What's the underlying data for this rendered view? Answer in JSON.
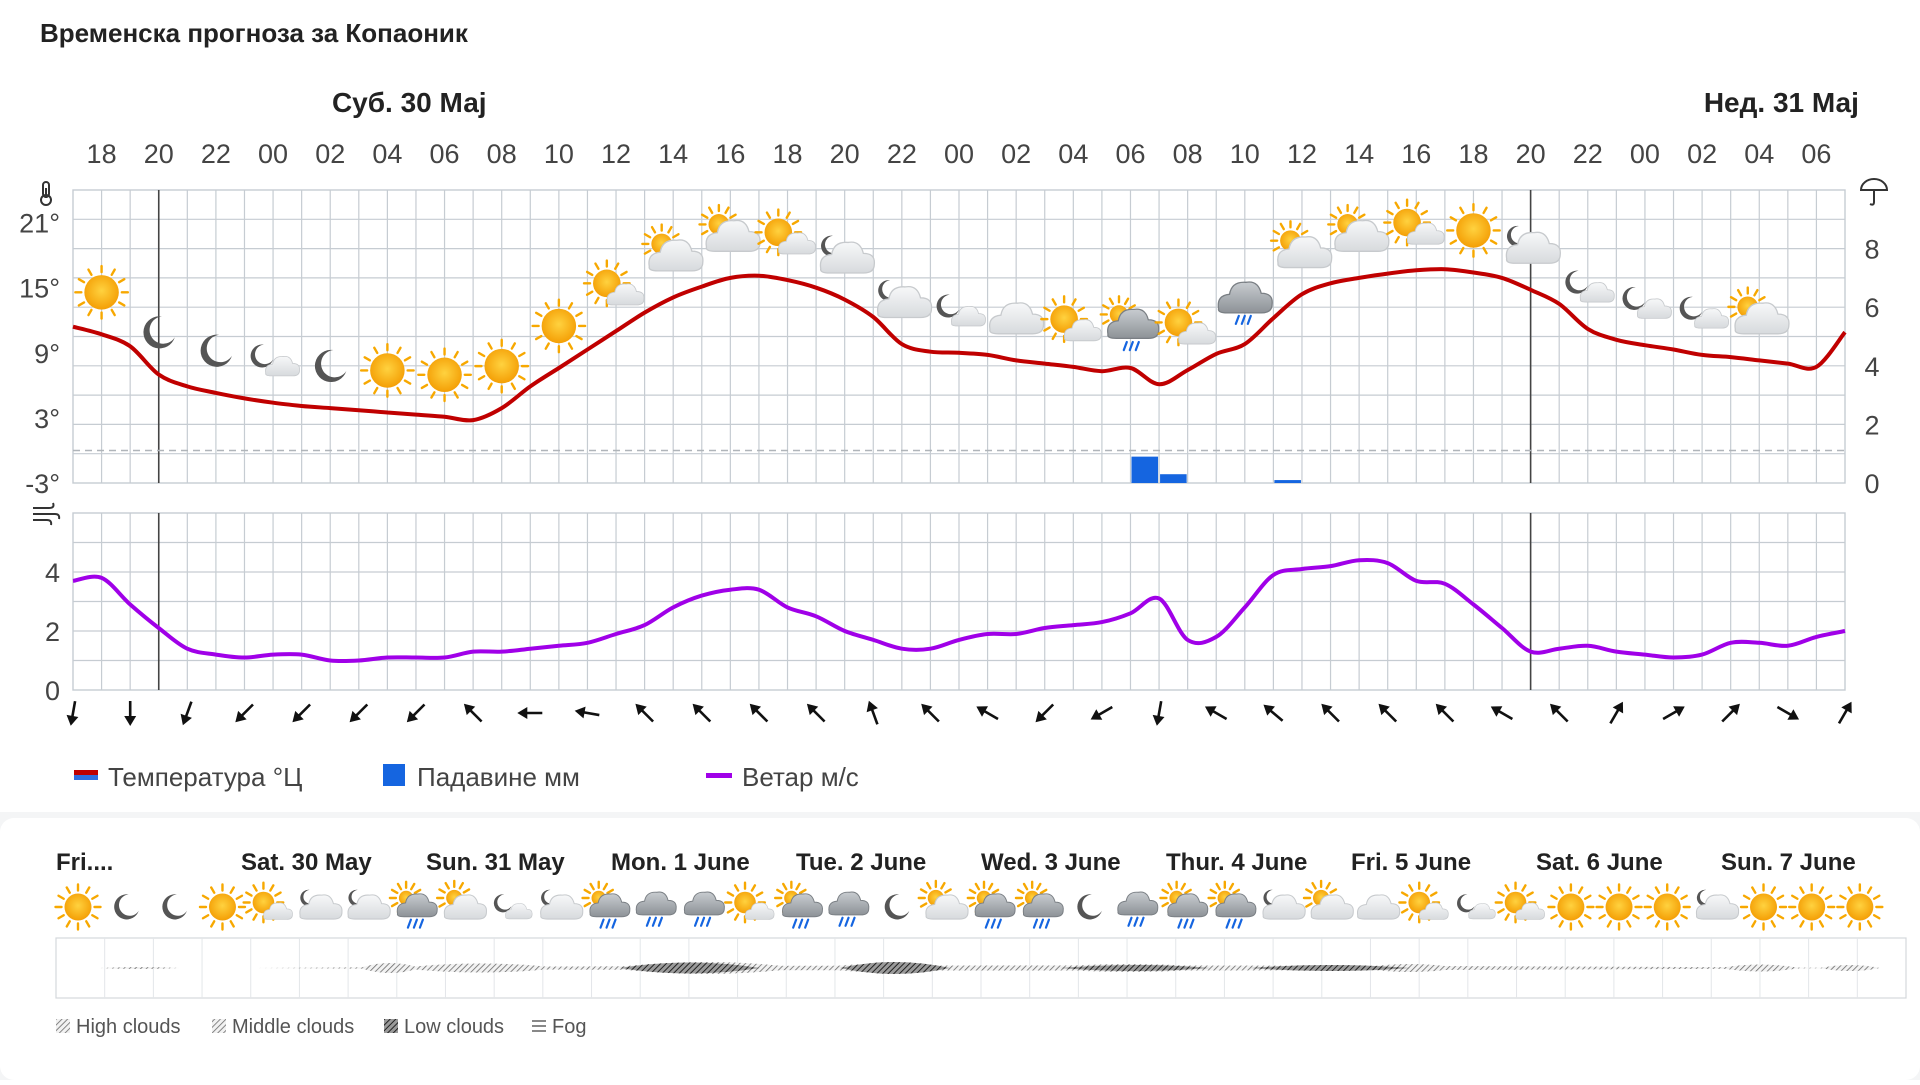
{
  "page": {
    "title": "Временска прогноза за Копаоник"
  },
  "chart_data": {
    "type": "line",
    "days": [
      {
        "label": "Суб. 30 Мај",
        "at_hour_index": 6
      },
      {
        "label": "Нед. 31 Мај",
        "at_hour_index": 30
      }
    ],
    "day_dividers_hour_index": [
      3,
      27,
      51
    ],
    "hour_labels": [
      "18",
      "20",
      "22",
      "00",
      "02",
      "04",
      "06",
      "08",
      "10",
      "12",
      "14",
      "16",
      "18",
      "20",
      "22",
      "00",
      "02",
      "04",
      "06",
      "08",
      "10",
      "12",
      "14",
      "16",
      "18",
      "20",
      "22",
      "00",
      "02",
      "04",
      "06"
    ],
    "temperature": {
      "axis_ticks": [
        "21°",
        "15°",
        "9°",
        "3°",
        "-3°"
      ],
      "axis_values": [
        21,
        15,
        9,
        3,
        -3
      ],
      "ylim": [
        -3,
        24
      ],
      "hour": [
        0,
        1,
        2,
        3,
        4,
        5,
        6,
        7,
        8,
        9,
        10,
        11,
        12,
        13,
        14,
        15,
        16,
        17,
        18,
        19,
        20,
        21,
        22,
        23,
        24,
        25,
        26,
        27,
        28,
        29,
        30,
        31,
        32,
        33,
        34,
        35,
        36,
        37,
        38,
        39,
        40,
        41,
        42,
        43,
        44,
        45,
        46,
        47,
        48,
        49,
        50,
        51,
        52,
        53,
        54,
        55,
        56,
        57,
        58,
        59,
        60,
        61,
        62
      ],
      "values": [
        11.4,
        10.7,
        9.6,
        7.0,
        5.9,
        5.3,
        4.8,
        4.4,
        4.1,
        3.9,
        3.7,
        3.5,
        3.3,
        3.1,
        2.8,
        3.9,
        5.9,
        7.6,
        9.3,
        11.0,
        12.7,
        14.1,
        15.1,
        15.9,
        16.1,
        15.7,
        15.0,
        13.9,
        12.3,
        9.8,
        9.1,
        9.0,
        8.8,
        8.3,
        8.0,
        7.7,
        7.3,
        7.6,
        6.1,
        7.4,
        8.9,
        9.8,
        12.2,
        14.4,
        15.4,
        15.9,
        16.3,
        16.6,
        16.7,
        16.4,
        15.9,
        14.8,
        13.5,
        11.2,
        10.2,
        9.7,
        9.3,
        8.8,
        8.6,
        8.3,
        8.0,
        7.7,
        10.9
      ],
      "color": "#c00000"
    },
    "precipitation": {
      "axis_ticks": [
        "8",
        "6",
        "4",
        "2",
        "0"
      ],
      "axis_values": [
        8,
        6,
        4,
        2,
        0
      ],
      "ylim": [
        0,
        10
      ],
      "bars": [
        {
          "hour_index": 37,
          "value": 0.9
        },
        {
          "hour_index": 38,
          "value": 0.3
        },
        {
          "hour_index": 42,
          "value": 0.1
        }
      ],
      "color": "#1565e0"
    },
    "wind": {
      "axis_ticks": [
        "4",
        "2",
        "0"
      ],
      "axis_values": [
        4,
        2,
        0
      ],
      "ylim": [
        0,
        6
      ],
      "values": [
        3.7,
        3.8,
        2.9,
        2.1,
        1.4,
        1.2,
        1.1,
        1.2,
        1.2,
        1.0,
        1.0,
        1.1,
        1.1,
        1.1,
        1.3,
        1.3,
        1.4,
        1.5,
        1.6,
        1.9,
        2.2,
        2.8,
        3.2,
        3.4,
        3.4,
        2.8,
        2.5,
        2.0,
        1.7,
        1.4,
        1.4,
        1.7,
        1.9,
        1.9,
        2.1,
        2.2,
        2.3,
        2.6,
        3.1,
        1.7,
        1.8,
        2.8,
        3.9,
        4.1,
        4.2,
        4.4,
        4.3,
        3.7,
        3.6,
        2.9,
        2.1,
        1.3,
        1.4,
        1.5,
        1.3,
        1.2,
        1.1,
        1.2,
        1.6,
        1.6,
        1.5,
        1.8,
        2.0
      ],
      "color": "#a000e8"
    },
    "wind_dir_deg": [
      10,
      0,
      20,
      45,
      45,
      45,
      45,
      135,
      90,
      100,
      135,
      135,
      135,
      135,
      160,
      135,
      120,
      45,
      60,
      10,
      120,
      130,
      135,
      135,
      135,
      120,
      135,
      210,
      240,
      225,
      300,
      210
    ],
    "weather_icons": [
      "sun",
      "moon",
      "moon",
      "partly-cloudy-night",
      "moon",
      "sun",
      "sun",
      "sun",
      "sun",
      "partly-cloudy-day",
      "cloudy-day",
      "cloudy-day",
      "partly-cloudy-day",
      "cloudy-night",
      "cloudy-night",
      "partly-cloudy-night",
      "cloudy",
      "partly-cloudy-day",
      "rain-day",
      "partly-cloudy-day",
      "light-rain",
      "cloudy-day",
      "cloudy-day",
      "partly-cloudy-day",
      "sun",
      "cloudy-night",
      "partly-cloudy-night",
      "partly-cloudy-night",
      "partly-cloudy-night",
      "cloudy-day"
    ],
    "legend": {
      "temperature": "Температура °Ц",
      "precipitation": "Падавине мм",
      "wind": "Ветар м/с"
    }
  },
  "meteogram": {
    "days": [
      "Fri....",
      "Sat. 30 May",
      "Sun. 31 May",
      "Mon. 1 June",
      "Tue. 2 June",
      "Wed. 3 June",
      "Thur. 4 June",
      "Fri. 5 June",
      "Sat. 6 June",
      "Sun. 7 June"
    ],
    "icons": [
      "sun",
      "moon",
      "moon",
      "sun",
      "partly-cloudy-day",
      "cloudy-night",
      "cloudy-night",
      "rain-day",
      "cloudy-day",
      "partly-cloudy-night",
      "cloudy-night",
      "rain-day",
      "rain",
      "rain",
      "partly-cloudy-day",
      "rain-day",
      "rain",
      "moon",
      "cloudy-day",
      "rain-day",
      "rain-day",
      "moon",
      "rain",
      "rain-day",
      "rain-day",
      "cloudy-night",
      "cloudy-day",
      "cloudy",
      "partly-cloudy-day",
      "partly-cloudy-night",
      "partly-cloudy-day",
      "sun",
      "sun",
      "sun",
      "cloudy-night",
      "sun",
      "sun",
      "sun"
    ],
    "cloud_legend": [
      "High clouds",
      "Middle clouds",
      "Low clouds",
      "Fog"
    ]
  },
  "colors": {
    "grid": "#c6ccd2",
    "day_line": "#444444",
    "sun": "#f7a800",
    "cloud": "#e6e8ea",
    "moon": "#555555"
  }
}
